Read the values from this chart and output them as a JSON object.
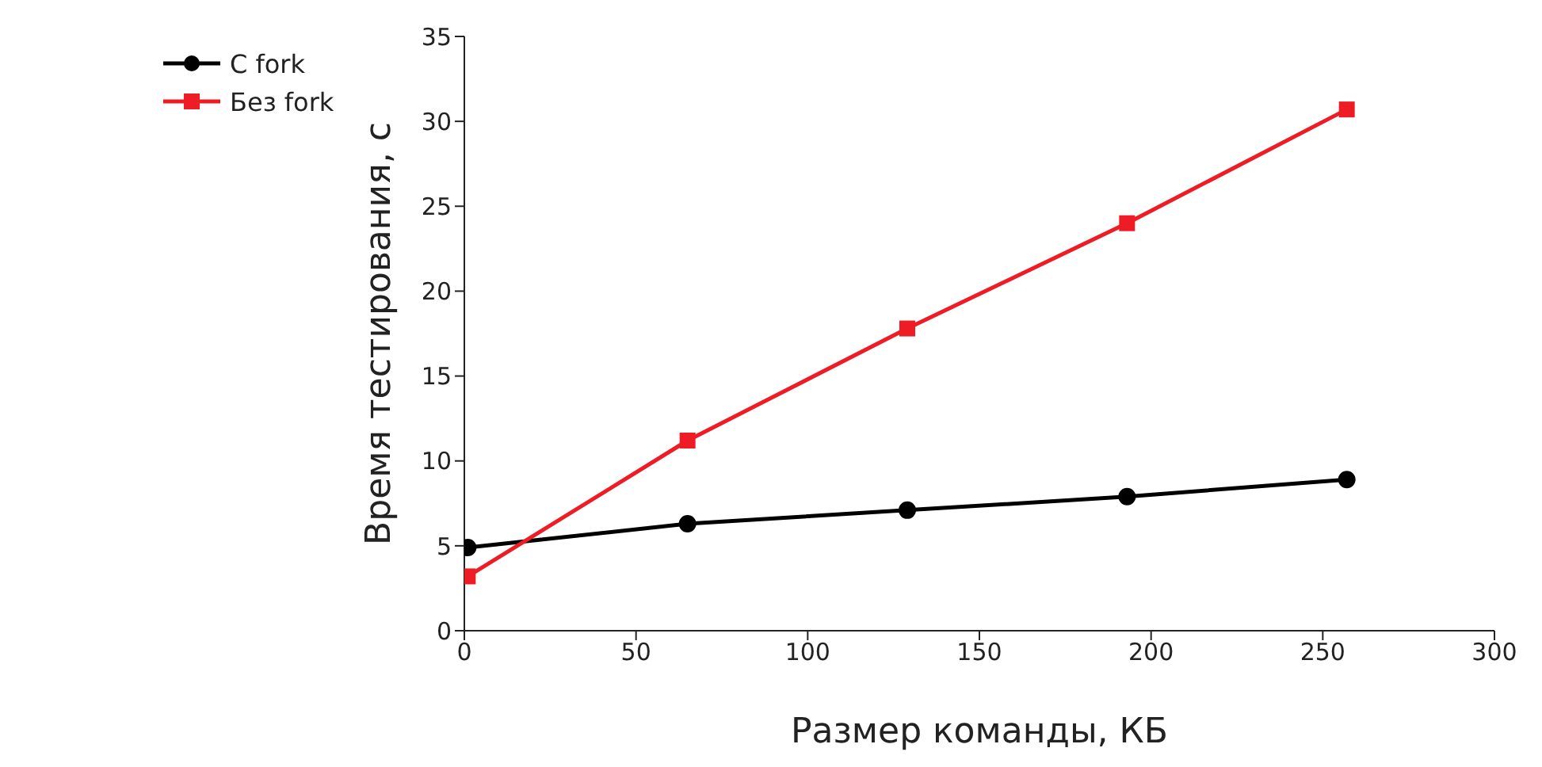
{
  "chart_data": {
    "type": "line",
    "xlabel": "Размер команды, КБ",
    "ylabel": "Время тестирования, с",
    "x": [
      1,
      65,
      129,
      193,
      257
    ],
    "series": [
      {
        "name": "С fork",
        "color": "#000000",
        "marker": "circle",
        "values": [
          4.9,
          6.3,
          7.1,
          7.9,
          8.9
        ]
      },
      {
        "name": "Без fork",
        "color": "#ee1c25",
        "marker": "square",
        "values": [
          3.2,
          11.2,
          17.8,
          24.0,
          30.7
        ]
      }
    ],
    "xlim": [
      0,
      300
    ],
    "xticks": [
      0,
      50,
      100,
      150,
      200,
      250,
      300
    ],
    "ylim": [
      0,
      35
    ],
    "yticks": [
      0,
      5,
      10,
      15,
      20,
      25,
      30,
      35
    ],
    "grid": false,
    "legend": "top left",
    "line_style": "solid"
  }
}
